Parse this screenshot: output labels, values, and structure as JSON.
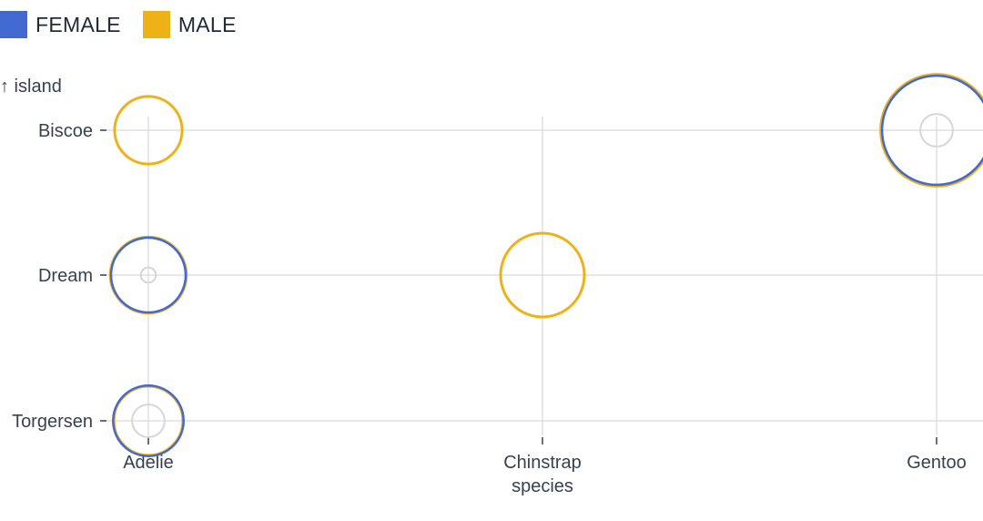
{
  "chart_data": {
    "type": "scatter",
    "xlabel": "species",
    "ylabel": "↑ island",
    "x_categories": [
      "Adelie",
      "Chinstrap",
      "Gentoo"
    ],
    "y_categories": [
      "Torgersen",
      "Dream",
      "Biscoe"
    ],
    "grid": true,
    "legend_position": "top-left",
    "series": [
      {
        "name": "FEMALE",
        "color": "#4269d0",
        "points": [
          {
            "x": "Adelie",
            "y": "Biscoe",
            "size": 0
          },
          {
            "x": "Adelie",
            "y": "Dream",
            "size": 27
          },
          {
            "x": "Adelie",
            "y": "Torgersen",
            "size": 24
          },
          {
            "x": "Chinstrap",
            "y": "Dream",
            "size": 0
          },
          {
            "x": "Gentoo",
            "y": "Biscoe",
            "size": 58
          }
        ]
      },
      {
        "name": "MALE",
        "color": "#efb118",
        "points": [
          {
            "x": "Adelie",
            "y": "Biscoe",
            "size": 22
          },
          {
            "x": "Adelie",
            "y": "Dream",
            "size": 28
          },
          {
            "x": "Adelie",
            "y": "Torgersen",
            "size": 23
          },
          {
            "x": "Chinstrap",
            "y": "Dream",
            "size": 34
          },
          {
            "x": "Gentoo",
            "y": "Biscoe",
            "size": 61
          }
        ]
      },
      {
        "name": "",
        "color": "#d6d6d6",
        "points": [
          {
            "x": "Adelie",
            "y": "Dream",
            "size": 1
          },
          {
            "x": "Adelie",
            "y": "Torgersen",
            "size": 5
          },
          {
            "x": "Gentoo",
            "y": "Biscoe",
            "size": 5
          }
        ]
      }
    ]
  }
}
